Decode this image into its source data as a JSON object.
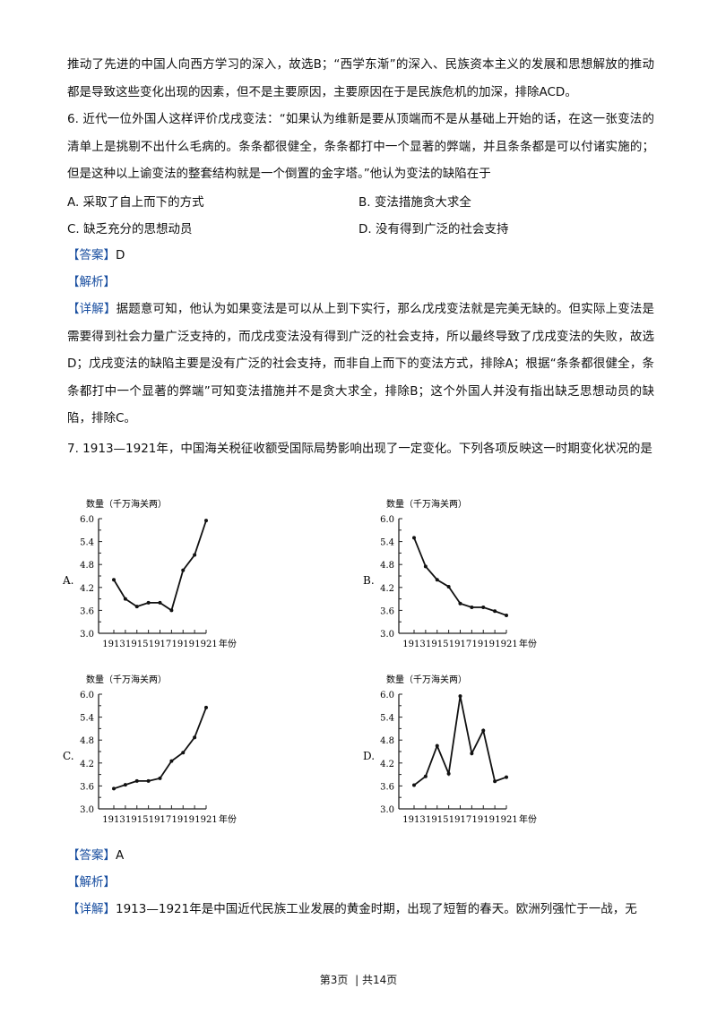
{
  "text": {
    "para1": "推动了先进的中国人向西方学习的深入，故选B；“西学东渐”的深入、民族资本主义的发展和思想解放的推动都是导致这些变化出现的因素，但不是主要原因，主要原因在于是民族危机的加深，排除ACD。",
    "q6": "6. 近代一位外国人这样评价戊戌变法：“如果认为维新是要从顶端而不是从基础上开始的话，在这一张变法的清单上是挑剔不出什么毛病的。条条都很健全，条条都打中一个显著的弊端，并且条条都是可以付诸实施的；但是这种以上谕变法的整套结构就是一个倒置的金字塔。”他认为变法的缺陷在于",
    "q6_options": [
      "A. 采取了自上而下的方式",
      "B. 变法措施贪大求全",
      "C. 缺乏充分的思想动员",
      "D. 没有得到广泛的社会支持"
    ],
    "answer_label": "【答案】",
    "q6_answer": "D",
    "analysis_label": "【解析】",
    "detail_label": "【详解】",
    "q6_detail": "据题意可知，他认为如果变法是可以从上到下实行，那么戊戌变法就是完美无缺的。但实际上变法是需要得到社会力量广泛支持的，而戊戌变法没有得到广泛的社会支持，所以最终导致了戊戌变法的失败，故选D；戊戌变法的缺陷主要是没有广泛的社会支持，而非自上而下的变法方式，排除A；根据“条条都很健全，条条都打中一个显著的弊端”可知变法措施并不是贪大求全，排除B；这个外国人并没有指出缺乏思想动员的缺陷，排除C。",
    "q7": "7. 1913—1921年，中国海关税征收额受国际局势影响出现了一定变化。下列各项反映这一时期变化状况的是",
    "q7_answer": "A",
    "q7_detail": "1913—1921年是中国近代民族工业发展的黄金时期，出现了短暂的春天。欧洲列强忙于一战，无"
  },
  "footer": {
    "page": "第3页",
    "sep": "|",
    "total": "共14页"
  },
  "chart_data": [
    {
      "option": "A.",
      "type": "line",
      "ylabel": "数量（千万海关两）",
      "xlabel": "年份",
      "ylim": [
        3.0,
        6.0
      ],
      "yticks": [
        "3.0",
        "3.6",
        "4.2",
        "4.8",
        "5.4",
        "6.0"
      ],
      "xticks": [
        "1913",
        "1915",
        "1917",
        "1919",
        "1921"
      ],
      "x": [
        1913,
        1914,
        1915,
        1916,
        1917,
        1918,
        1919,
        1920,
        1921
      ],
      "values": [
        4.4,
        3.9,
        3.7,
        3.8,
        3.8,
        3.6,
        4.65,
        5.05,
        5.95
      ]
    },
    {
      "option": "B.",
      "type": "line",
      "ylabel": "数量（千万海关两）",
      "xlabel": "年份",
      "ylim": [
        3.0,
        6.0
      ],
      "yticks": [
        "3.0",
        "3.6",
        "4.2",
        "4.8",
        "5.4",
        "6.0"
      ],
      "xticks": [
        "1913",
        "1915",
        "1917",
        "1919",
        "1921"
      ],
      "x": [
        1913,
        1914,
        1915,
        1916,
        1917,
        1918,
        1919,
        1920,
        1921
      ],
      "values": [
        5.5,
        4.75,
        4.4,
        4.22,
        3.78,
        3.68,
        3.68,
        3.58,
        3.47
      ]
    },
    {
      "option": "C.",
      "type": "line",
      "ylabel": "数量（千万海关两）",
      "xlabel": "年份",
      "ylim": [
        3.0,
        6.0
      ],
      "yticks": [
        "3.0",
        "3.6",
        "4.2",
        "4.8",
        "5.4",
        "6.0"
      ],
      "xticks": [
        "1913",
        "1915",
        "1917",
        "1919",
        "1921"
      ],
      "x": [
        1913,
        1914,
        1915,
        1916,
        1917,
        1918,
        1919,
        1920,
        1921
      ],
      "values": [
        3.53,
        3.63,
        3.73,
        3.73,
        3.8,
        4.25,
        4.47,
        4.87,
        5.65
      ]
    },
    {
      "option": "D.",
      "type": "line",
      "ylabel": "数量（千万海关两）",
      "xlabel": "年份",
      "ylim": [
        3.0,
        6.0
      ],
      "yticks": [
        "3.0",
        "3.6",
        "4.2",
        "4.8",
        "5.4",
        "6.0"
      ],
      "xticks": [
        "1913",
        "1915",
        "1917",
        "1919",
        "1921"
      ],
      "x": [
        1913,
        1914,
        1915,
        1916,
        1917,
        1918,
        1919,
        1920,
        1921
      ],
      "values": [
        3.62,
        3.85,
        4.65,
        3.92,
        5.95,
        4.45,
        5.05,
        3.72,
        3.83
      ]
    }
  ]
}
